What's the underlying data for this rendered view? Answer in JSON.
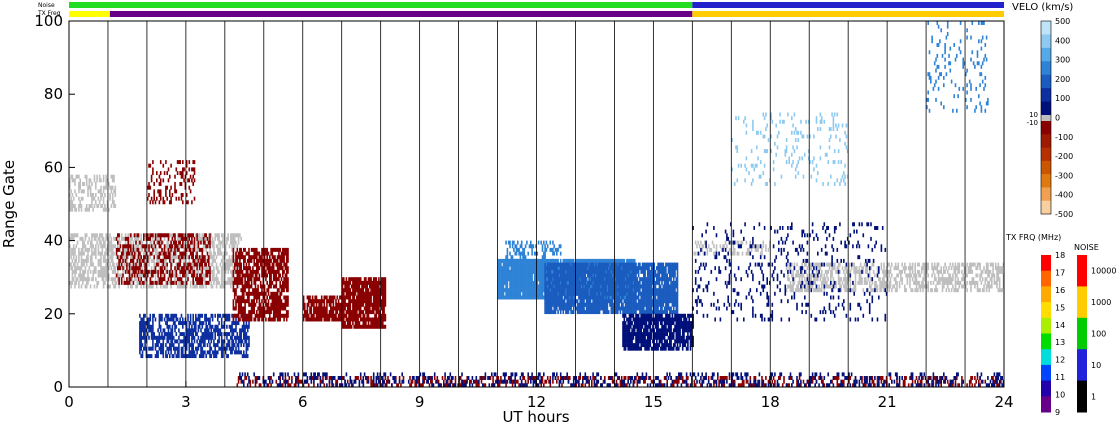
{
  "chart_data": {
    "type": "heatmap",
    "title": "",
    "xlabel": "UT hours",
    "ylabel": "Range Gate",
    "xlim": [
      0,
      24
    ],
    "ylim": [
      0,
      100
    ],
    "x_ticks": [
      "0",
      "3",
      "6",
      "9",
      "12",
      "15",
      "18",
      "21",
      "24"
    ],
    "y_ticks": [
      "0",
      "20",
      "40",
      "60",
      "80",
      "100"
    ],
    "grid": "vertical lines every hour",
    "top_bars": {
      "noise_label": "Noise",
      "txfrq_label": "TX Freq",
      "noise_segments": [
        {
          "x0": 0,
          "x1": 16,
          "color": "#22dd22"
        },
        {
          "x0": 16,
          "x1": 24,
          "color": "#2222cc"
        }
      ],
      "txfrq_segments": [
        {
          "x0": 0,
          "x1": 1.05,
          "color": "#ffff00"
        },
        {
          "x0": 1.05,
          "x1": 16,
          "color": "#660088"
        },
        {
          "x0": 16,
          "x1": 24,
          "color": "#ffcc00"
        }
      ]
    },
    "velocity_scale": {
      "title": "VELO (km/s)",
      "ticks": [
        "500",
        "400",
        "300",
        "200",
        "100",
        "0",
        "-100",
        "-200",
        "-300",
        "-400",
        "-500"
      ],
      "ground_labels": [
        "10",
        "-10"
      ],
      "colors_pos": [
        "#bfe4f7",
        "#8ecaf0",
        "#55a9e8",
        "#2e83d6",
        "#1a5cbf",
        "#0d2fa0",
        "#00107a"
      ],
      "colors_neg": [
        "#8a0000",
        "#a01a00",
        "#b83000",
        "#cc5500",
        "#e07a10",
        "#f0a050",
        "#f8d0a0"
      ]
    },
    "txfrq_scale": {
      "title": "TX FRQ (MHz)",
      "ticks": [
        "18",
        "17",
        "16",
        "15",
        "14",
        "13",
        "12",
        "11",
        "10",
        "9"
      ],
      "colors": [
        "#ff0000",
        "#ff6600",
        "#ffaa00",
        "#ffdd00",
        "#aaee00",
        "#00dd00",
        "#00dddd",
        "#0044ff",
        "#2200aa",
        "#660088"
      ]
    },
    "noise_scale": {
      "title": "NOISE",
      "ticks": [
        "10000",
        "1000",
        "100",
        "10",
        "1"
      ],
      "colors": [
        "#ff0000",
        "#ffcc00",
        "#00cc00",
        "#2222dd",
        "#000000"
      ]
    },
    "regions": [
      {
        "name": "ground-scatter-early",
        "x0": 0.0,
        "x1": 4.4,
        "y0": 27,
        "y1": 42,
        "color": "#bfbfbf",
        "density": 0.55
      },
      {
        "name": "ground-scatter-early-upper",
        "x0": 0.0,
        "x1": 1.2,
        "y0": 48,
        "y1": 58,
        "color": "#bfbfbf",
        "density": 0.4
      },
      {
        "name": "neg-vel-early",
        "x0": 1.2,
        "x1": 3.6,
        "y0": 28,
        "y1": 42,
        "color": "#8a0000",
        "density": 0.45
      },
      {
        "name": "neg-vel-early-upper",
        "x0": 2.0,
        "x1": 3.2,
        "y0": 50,
        "y1": 62,
        "color": "#8a0000",
        "density": 0.25
      },
      {
        "name": "pos-vel-low-band",
        "x0": 1.8,
        "x1": 4.6,
        "y0": 8,
        "y1": 20,
        "color": "#0d2fa0",
        "density": 0.6
      },
      {
        "name": "neg-vel-patch-1",
        "x0": 4.2,
        "x1": 5.6,
        "y0": 18,
        "y1": 38,
        "color": "#8a0000",
        "density": 0.7
      },
      {
        "name": "neg-vel-patch-2",
        "x0": 6.0,
        "x1": 7.0,
        "y0": 18,
        "y1": 25,
        "color": "#8a0000",
        "density": 0.85
      },
      {
        "name": "neg-vel-patch-3",
        "x0": 7.0,
        "x1": 8.1,
        "y0": 16,
        "y1": 30,
        "color": "#8a0000",
        "density": 0.9
      },
      {
        "name": "pos-vel-main-1",
        "x0": 11.0,
        "x1": 14.5,
        "y0": 24,
        "y1": 35,
        "color": "#2e83d6",
        "density": 0.95
      },
      {
        "name": "pos-vel-main-2",
        "x0": 12.2,
        "x1": 15.6,
        "y0": 20,
        "y1": 34,
        "color": "#1a5cbf",
        "density": 0.9
      },
      {
        "name": "pos-vel-tail",
        "x0": 14.2,
        "x1": 16.0,
        "y0": 10,
        "y1": 20,
        "color": "#00107a",
        "density": 0.85
      },
      {
        "name": "pos-vel-edge",
        "x0": 11.2,
        "x1": 12.6,
        "y0": 34,
        "y1": 40,
        "color": "#2e83d6",
        "density": 0.4
      },
      {
        "name": "ground-scatter-late",
        "x0": 18.4,
        "x1": 24.0,
        "y0": 26,
        "y1": 34,
        "color": "#bfbfbf",
        "density": 0.5
      },
      {
        "name": "ground-scatter-late-2",
        "x0": 16.0,
        "x1": 18.0,
        "y0": 36,
        "y1": 40,
        "color": "#bfbfbf",
        "density": 0.3
      },
      {
        "name": "pos-vel-late-sparse",
        "x0": 16.0,
        "x1": 21.0,
        "y0": 18,
        "y1": 45,
        "color": "#00107a",
        "density": 0.1
      },
      {
        "name": "pos-vel-late-high",
        "x0": 17.0,
        "x1": 20.0,
        "y0": 55,
        "y1": 75,
        "color": "#8ecaf0",
        "density": 0.1
      },
      {
        "name": "pos-vel-very-high",
        "x0": 22.0,
        "x1": 23.6,
        "y0": 75,
        "y1": 100,
        "color": "#2e83d6",
        "density": 0.12
      },
      {
        "name": "near-range-clutter-neg",
        "x0": 4.3,
        "x1": 24.0,
        "y0": 0,
        "y1": 3,
        "color": "#8a0000",
        "density": 0.35
      },
      {
        "name": "near-range-clutter-pos",
        "x0": 4.3,
        "x1": 24.0,
        "y0": 0,
        "y1": 4,
        "color": "#00107a",
        "density": 0.25
      }
    ]
  }
}
